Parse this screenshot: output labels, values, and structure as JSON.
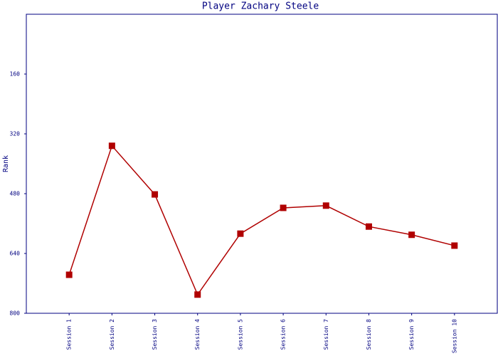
{
  "chart_data": {
    "type": "line",
    "title": "Player Zachary Steele",
    "y_label": "Rank",
    "categories": [
      "Session 1",
      "Session 2",
      "Session 3",
      "Session 4",
      "Session 5",
      "Session 6",
      "Session 7",
      "Session 8",
      "Session 9",
      "Session 10"
    ],
    "values": [
      697,
      352,
      482,
      750,
      587,
      518,
      512,
      568,
      590,
      619
    ],
    "color": "#b00000",
    "ylim": [
      800,
      0
    ],
    "yticks": [
      160,
      320,
      480,
      640,
      800
    ],
    "grid": false
  }
}
